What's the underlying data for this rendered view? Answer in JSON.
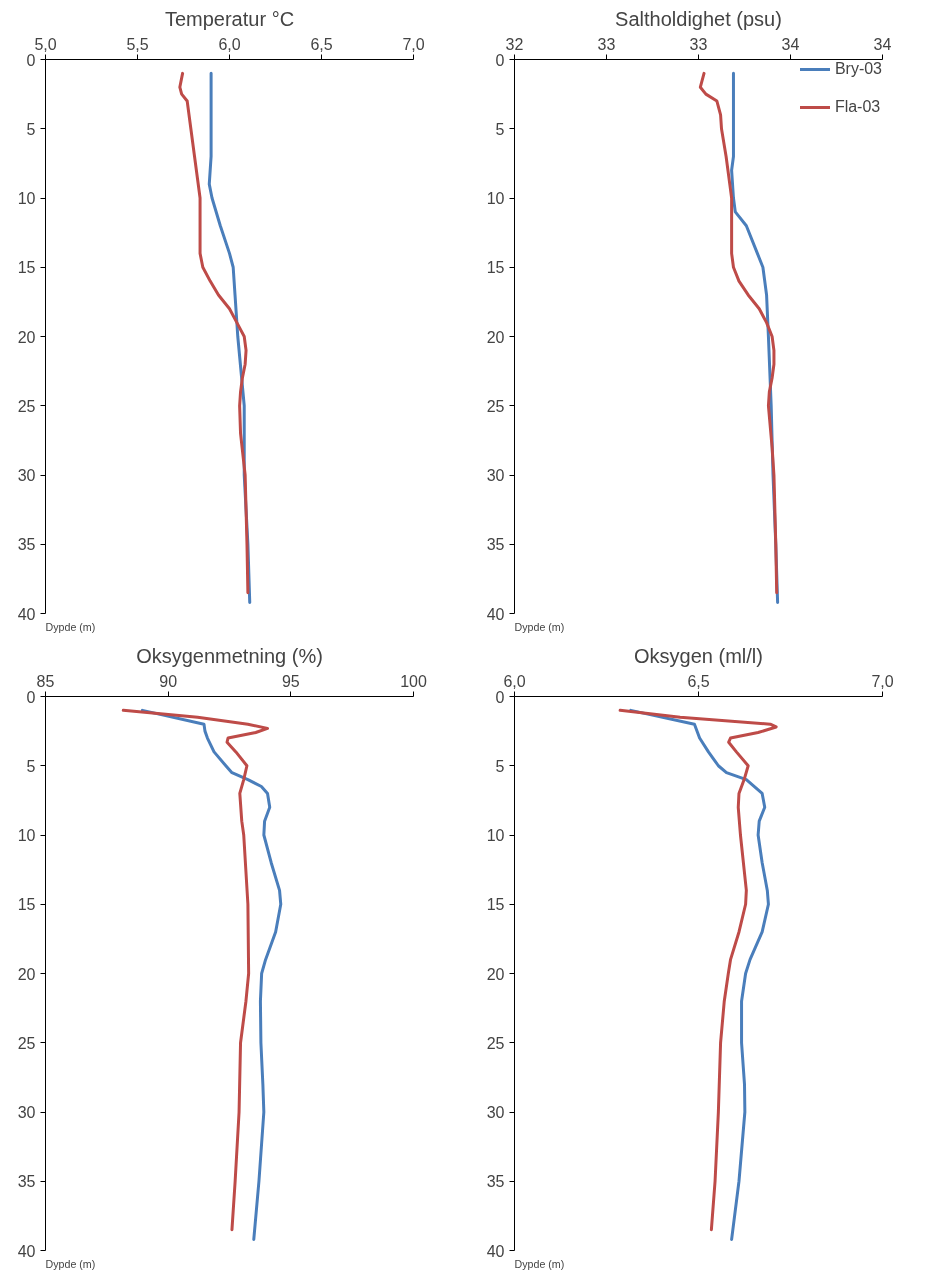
{
  "chart_data": [
    {
      "type": "line",
      "title": "Temperatur °C",
      "annotations": [
        "Dypde (m)"
      ],
      "xlim": [
        5,
        7
      ],
      "xticks": [
        {
          "value": 5,
          "label": "5,0"
        },
        {
          "value": 5.5,
          "label": "5,5"
        },
        {
          "value": 6,
          "label": "6,0"
        },
        {
          "value": 6.5,
          "label": "6,5"
        },
        {
          "value": 7,
          "label": "7,0"
        }
      ],
      "ylim": [
        40,
        0
      ],
      "yticks": [
        0,
        5,
        10,
        15,
        20,
        25,
        30,
        35,
        40
      ],
      "grid": false,
      "line_style": "solid",
      "series": [
        {
          "color": "#4a7ebb",
          "x": [
            5.9,
            5.9,
            5.9,
            5.89,
            5.905,
            5.95,
            6.0,
            6.02,
            6.03,
            6.045,
            6.08,
            6.08,
            6.1,
            6.11
          ],
          "values": [
            1,
            5,
            7,
            9,
            10,
            12,
            14,
            15,
            17,
            20,
            25,
            30,
            35,
            39.2
          ]
        },
        {
          "color": "#be4b48",
          "x": [
            5.745,
            5.73,
            5.74,
            5.77,
            5.79,
            5.81,
            5.84,
            5.84,
            5.84,
            5.855,
            5.895,
            5.94,
            6.0,
            6.04,
            6.08,
            6.09,
            6.085,
            6.07,
            6.06,
            6.055,
            6.06,
            6.085,
            6.095,
            6.1
          ],
          "values": [
            1,
            2,
            2.5,
            3,
            5,
            7,
            10,
            12,
            14,
            15,
            16,
            17,
            18,
            19,
            20,
            21,
            22,
            23,
            24,
            25,
            27,
            30,
            35,
            38.5
          ]
        }
      ]
    },
    {
      "type": "line",
      "title": "Saltholdighet (psu)",
      "annotations": [
        "Dypde (m)"
      ],
      "xlim": [
        32,
        34
      ],
      "xticks": [
        32,
        {
          "value": 32.5,
          "label": "33"
        },
        33,
        {
          "value": 33.5,
          "label": "34"
        },
        34
      ],
      "ylim": [
        40,
        0
      ],
      "yticks": [
        0,
        5,
        10,
        15,
        20,
        25,
        30,
        35,
        40
      ],
      "grid": false,
      "line_style": "solid",
      "legend": "top right",
      "series": [
        {
          "name": "Bry-03",
          "color": "#4a7ebb",
          "x": [
            33.19,
            33.19,
            33.19,
            33.18,
            33.19,
            33.2,
            33.26,
            33.32,
            33.35,
            33.37,
            33.38,
            33.395,
            33.405,
            33.42,
            33.43
          ],
          "values": [
            1,
            5,
            7,
            8,
            10,
            11,
            12,
            14,
            15,
            17,
            20,
            25,
            30,
            35,
            39.2
          ]
        },
        {
          "name": "Fla-03",
          "color": "#be4b48",
          "x": [
            33.03,
            33.01,
            33.04,
            33.1,
            33.12,
            33.125,
            33.15,
            33.17,
            33.18,
            33.18,
            33.18,
            33.19,
            33.22,
            33.27,
            33.33,
            33.37,
            33.4,
            33.41,
            33.41,
            33.4,
            33.385,
            33.38,
            33.4,
            33.41,
            33.42,
            33.425
          ],
          "values": [
            1,
            2,
            2.5,
            3,
            4,
            5,
            7,
            9,
            10,
            12,
            14,
            15,
            16,
            17,
            18,
            19,
            20,
            21,
            22,
            23,
            24,
            25,
            28,
            30,
            35,
            38.5
          ]
        }
      ]
    },
    {
      "type": "line",
      "title": "Oksygenmetning (%)",
      "annotations": [
        "Dypde (m)"
      ],
      "xlim": [
        85,
        100
      ],
      "xticks": [
        85,
        90,
        95,
        100
      ],
      "ylim": [
        40,
        0
      ],
      "yticks": [
        0,
        5,
        10,
        15,
        20,
        25,
        30,
        35,
        40
      ],
      "grid": false,
      "line_style": "solid",
      "series": [
        {
          "color": "#4a7ebb",
          "x": [
            88.95,
            91.46,
            91.5,
            91.6,
            91.87,
            92.35,
            92.6,
            93.25,
            93.8,
            94.05,
            94.14,
            93.93,
            93.9,
            94.2,
            94.54,
            94.59,
            94.38,
            93.97,
            93.81,
            93.76,
            93.78,
            93.86,
            93.9,
            93.7,
            93.49
          ],
          "values": [
            1,
            2,
            2.5,
            3,
            4,
            5,
            5.5,
            6,
            6.5,
            7,
            8,
            9,
            10,
            12,
            14,
            15,
            17,
            19,
            20,
            22,
            25,
            28,
            30,
            35,
            39.2
          ]
        },
        {
          "color": "#be4b48",
          "x": [
            88.17,
            91.2,
            93.25,
            94.05,
            93.57,
            92.44,
            92.4,
            92.76,
            93.21,
            93.08,
            92.92,
            93.0,
            93.08,
            93.25,
            93.28,
            93.17,
            92.95,
            92.89,
            92.73,
            92.6
          ],
          "values": [
            1,
            1.5,
            2,
            2.3,
            2.6,
            3,
            3.3,
            4,
            5,
            6,
            7,
            9,
            10,
            15,
            20,
            22,
            25,
            30,
            35,
            38.5
          ]
        }
      ]
    },
    {
      "type": "line",
      "title": "Oksygen (ml/l)",
      "annotations": [
        "Dypde (m)"
      ],
      "xlim": [
        6,
        7
      ],
      "xticks": [
        {
          "value": 6,
          "label": "6,0"
        },
        {
          "value": 6.5,
          "label": "6,5"
        },
        {
          "value": 7,
          "label": "7,0"
        }
      ],
      "ylim": [
        40,
        0
      ],
      "yticks": [
        0,
        5,
        10,
        15,
        20,
        25,
        30,
        35,
        40
      ],
      "grid": false,
      "line_style": "solid",
      "series": [
        {
          "color": "#4a7ebb",
          "x": [
            6.316,
            6.489,
            6.503,
            6.527,
            6.554,
            6.576,
            6.63,
            6.673,
            6.68,
            6.665,
            6.662,
            6.673,
            6.687,
            6.69,
            6.673,
            6.64,
            6.628,
            6.617,
            6.617,
            6.625,
            6.626,
            6.61,
            6.59
          ],
          "values": [
            1,
            2,
            3,
            4,
            5,
            5.5,
            6,
            7,
            8,
            9,
            10,
            12,
            14,
            15,
            17,
            19,
            20,
            22,
            25,
            28,
            30,
            35,
            39.2
          ]
        },
        {
          "color": "#be4b48",
          "x": [
            6.287,
            6.45,
            6.695,
            6.711,
            6.662,
            6.587,
            6.582,
            6.603,
            6.635,
            6.624,
            6.61,
            6.608,
            6.614,
            6.63,
            6.628,
            6.61,
            6.587,
            6.581,
            6.57,
            6.56,
            6.554,
            6.545,
            6.535
          ],
          "values": [
            1,
            1.5,
            2,
            2.2,
            2.6,
            3,
            3.3,
            4,
            5,
            6,
            7,
            8,
            10,
            14,
            15,
            17,
            19,
            20,
            22,
            25,
            30,
            35,
            38.5
          ]
        }
      ]
    }
  ]
}
